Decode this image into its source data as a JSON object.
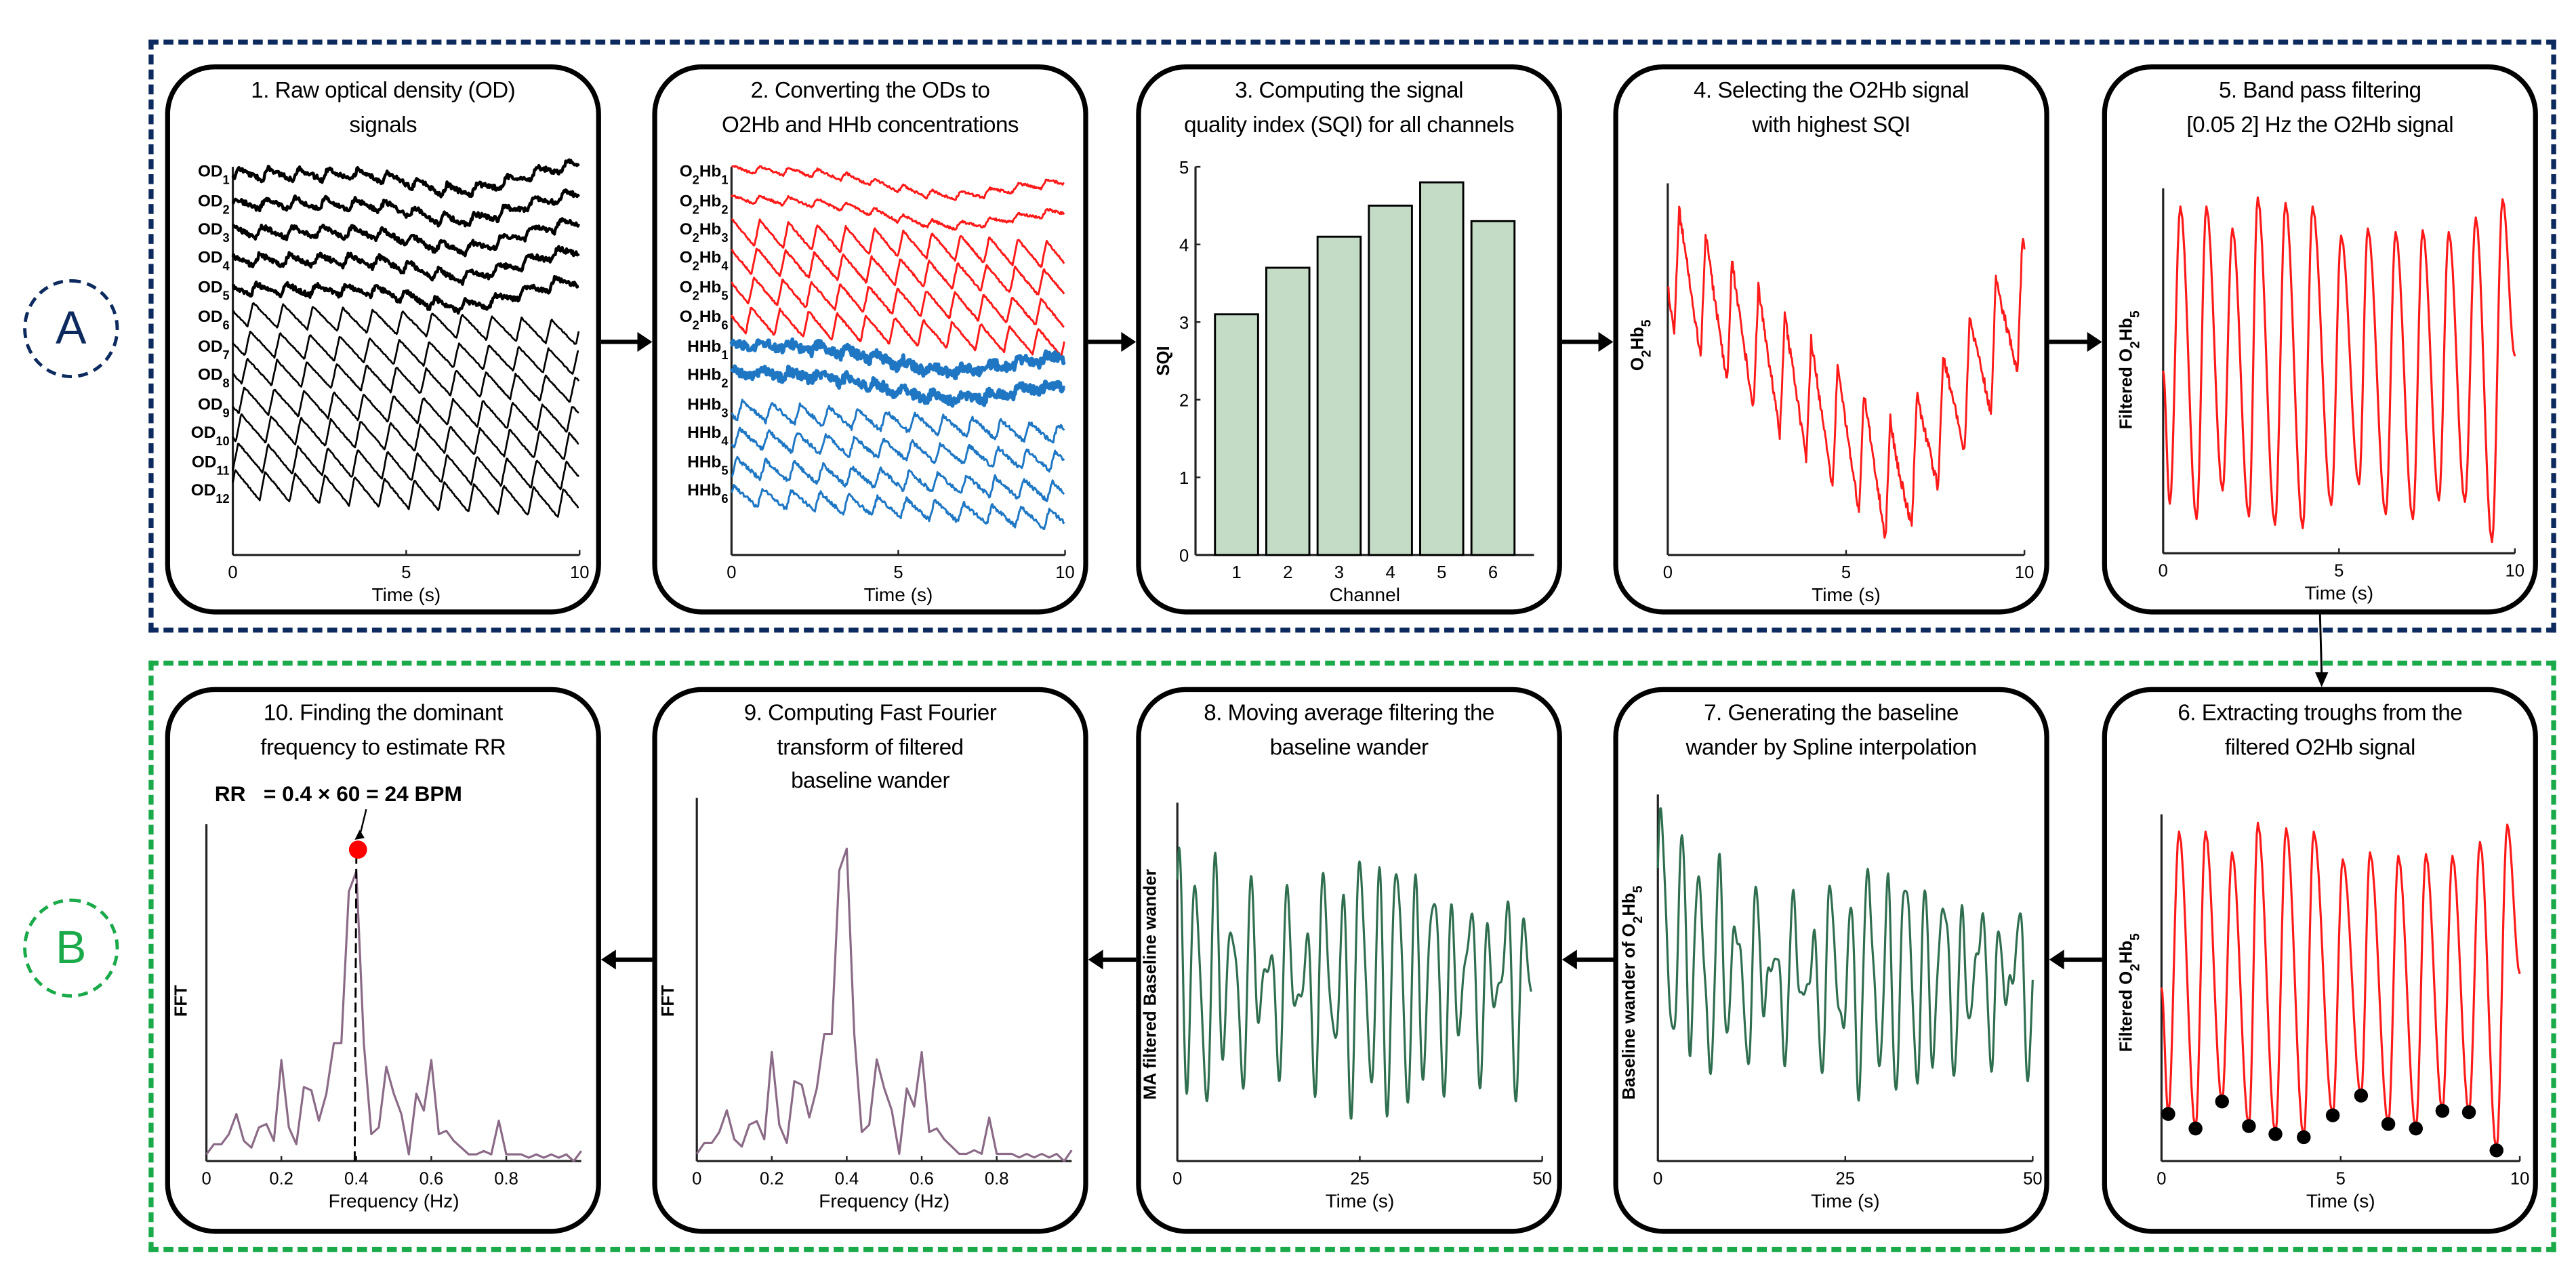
{
  "sections": {
    "a_label": "A",
    "b_label": "B"
  },
  "colors": {
    "section_a": "#0d2a5e",
    "section_b": "#1aaa4a",
    "red_signal": "#ff1a1a",
    "blue_signal": "#1f77c4",
    "black_signal": "#000000",
    "bar_fill": "#c4dcc6",
    "green_signal": "#2f6e4f",
    "fft_line": "#8a6a86",
    "trough_dot": "#000000",
    "peak_dot": "#ff0000"
  },
  "panels": {
    "p1": {
      "title1": "1. Raw optical density (OD)",
      "title2": "signals",
      "xlabel": "Time (s)",
      "xticks": [
        "0",
        "5",
        "10"
      ],
      "trace_labels": [
        {
          "base": "OD",
          "sub": "1"
        },
        {
          "base": "OD",
          "sub": "2"
        },
        {
          "base": "OD",
          "sub": "3"
        },
        {
          "base": "OD",
          "sub": "4"
        },
        {
          "base": "OD",
          "sub": "5"
        },
        {
          "base": "OD",
          "sub": "6"
        },
        {
          "base": "OD",
          "sub": "7"
        },
        {
          "base": "OD",
          "sub": "8"
        },
        {
          "base": "OD",
          "sub": "9"
        },
        {
          "base": "OD",
          "sub": "10"
        },
        {
          "base": "OD",
          "sub": "11"
        },
        {
          "base": "OD",
          "sub": "12"
        }
      ]
    },
    "p2": {
      "title1": "2. Converting the ODs to",
      "title2": "O2Hb and HHb concentrations",
      "xlabel": "Time (s)",
      "xticks": [
        "0",
        "5",
        "10"
      ],
      "trace_labels": [
        {
          "base": "O",
          "sub": "2",
          "base2": "Hb",
          "sub2": "1"
        },
        {
          "base": "O",
          "sub": "2",
          "base2": "Hb",
          "sub2": "2"
        },
        {
          "base": "O",
          "sub": "2",
          "base2": "Hb",
          "sub2": "3"
        },
        {
          "base": "O",
          "sub": "2",
          "base2": "Hb",
          "sub2": "4"
        },
        {
          "base": "O",
          "sub": "2",
          "base2": "Hb",
          "sub2": "5"
        },
        {
          "base": "O",
          "sub": "2",
          "base2": "Hb",
          "sub2": "6"
        },
        {
          "base": "HHb",
          "sub": "1"
        },
        {
          "base": "HHb",
          "sub": "2"
        },
        {
          "base": "HHb",
          "sub": "3"
        },
        {
          "base": "HHb",
          "sub": "4"
        },
        {
          "base": "HHb",
          "sub": "5"
        },
        {
          "base": "HHb",
          "sub": "6"
        }
      ]
    },
    "p3": {
      "title1": "3. Computing the signal",
      "title2": "quality index (SQI) for all channels",
      "xlabel": "Channel",
      "ylabel": "SQI",
      "yticks": [
        "0",
        "1",
        "2",
        "3",
        "4",
        "5"
      ],
      "xticks": [
        "1",
        "2",
        "3",
        "4",
        "5",
        "6"
      ]
    },
    "p4": {
      "title1": "4. Selecting the O2Hb signal",
      "title2": "with highest SQI",
      "xlabel": "Time (s)",
      "xticks": [
        "0",
        "5",
        "10"
      ],
      "ylabel": {
        "pre": "O",
        "sub1": "2",
        "mid": "Hb",
        "sub2": "5"
      }
    },
    "p5": {
      "title1": "5. Band pass filtering",
      "title2": "[0.05 2] Hz the O2Hb signal",
      "xlabel": "Time (s)",
      "xticks": [
        "0",
        "5",
        "10"
      ],
      "ylabel": {
        "pre": "Filtered O",
        "sub1": "2",
        "mid": "Hb",
        "sub2": "5"
      }
    },
    "p6": {
      "title1": "6. Extracting troughs from the",
      "title2": "filtered O2Hb signal",
      "xlabel": "Time (s)",
      "xticks": [
        "0",
        "5",
        "10"
      ],
      "ylabel": {
        "pre": "Filtered O",
        "sub1": "2",
        "mid": "Hb",
        "sub2": "5"
      }
    },
    "p7": {
      "title1": "7. Generating the baseline",
      "title2": "wander by Spline interpolation",
      "xlabel": "Time (s)",
      "xticks": [
        "0",
        "25",
        "50"
      ],
      "ylabel": {
        "pre": "Baseline wander of O",
        "sub1": "2",
        "mid": "Hb",
        "sub2": "5"
      }
    },
    "p8": {
      "title1": "8. Moving average filtering the",
      "title2": "baseline wander",
      "xlabel": "Time (s)",
      "xticks": [
        "0",
        "25",
        "50"
      ],
      "ylabel": {
        "pre": "MA  filtered Baseline wander",
        "sub1": "",
        "mid": "",
        "sub2": ""
      }
    },
    "p9": {
      "title1": "9. Computing Fast Fourier",
      "title2": "transform of filtered",
      "title3": "baseline wander",
      "xlabel": "Frequency (Hz)",
      "xticks": [
        "0",
        "0.2",
        "0.4",
        "0.6",
        "0.8"
      ],
      "ylabel": {
        "pre": "FFT",
        "sub1": "",
        "mid": "",
        "sub2": ""
      }
    },
    "p10": {
      "title1": "10. Finding the dominant",
      "title2": "frequency to estimate RR",
      "xlabel": "Frequency (Hz)",
      "xticks": [
        "0",
        "0.2",
        "0.4",
        "0.6",
        "0.8"
      ],
      "ylabel": {
        "pre": "FFT",
        "sub1": "",
        "mid": "",
        "sub2": ""
      },
      "rr_text": "RR   = 0.4 × 60 = 24 BPM"
    }
  },
  "chart_data": [
    {
      "panel": "3",
      "type": "bar",
      "title": "3. Computing the signal quality index (SQI) for all channels",
      "categories": [
        1,
        2,
        3,
        4,
        5,
        6
      ],
      "values": [
        3.1,
        3.7,
        4.1,
        4.5,
        4.8,
        4.3
      ],
      "xlabel": "Channel",
      "ylabel": "SQI",
      "ylim": [
        0,
        5
      ],
      "xlim": [
        0.2,
        6.8
      ]
    },
    {
      "panel": "9,10",
      "type": "line",
      "xlabel": "Frequency (Hz)",
      "ylabel": "FFT",
      "xlim": [
        0,
        1
      ],
      "ylim": [
        0,
        1
      ],
      "x": [
        0,
        0.02,
        0.04,
        0.06,
        0.08,
        0.1,
        0.12,
        0.14,
        0.16,
        0.18,
        0.2,
        0.22,
        0.24,
        0.26,
        0.28,
        0.3,
        0.32,
        0.34,
        0.36,
        0.38,
        0.4,
        0.42,
        0.44,
        0.46,
        0.48,
        0.5,
        0.52,
        0.54,
        0.56,
        0.58,
        0.6,
        0.62,
        0.64,
        0.66,
        0.68,
        0.7,
        0.72,
        0.74,
        0.76,
        0.78,
        0.8,
        0.82,
        0.84,
        0.86,
        0.88,
        0.9,
        0.92,
        0.94,
        0.96,
        0.98,
        1.0
      ],
      "values": [
        0.02,
        0.05,
        0.05,
        0.08,
        0.14,
        0.06,
        0.04,
        0.1,
        0.11,
        0.06,
        0.3,
        0.1,
        0.05,
        0.22,
        0.21,
        0.12,
        0.2,
        0.35,
        0.35,
        0.8,
        0.86,
        0.35,
        0.08,
        0.1,
        0.28,
        0.2,
        0.14,
        0.02,
        0.2,
        0.15,
        0.3,
        0.08,
        0.09,
        0.06,
        0.04,
        0.02,
        0.02,
        0.03,
        0.02,
        0.12,
        0.02,
        0.02,
        0.02,
        0.01,
        0.02,
        0.01,
        0.02,
        0.01,
        0.02,
        0.0,
        0.03
      ],
      "dominant_frequency": 0.4
    },
    {
      "panel": "6",
      "type": "scatter",
      "xlabel": "Time (s)",
      "xlim": [
        0,
        10
      ],
      "ylim": [
        0,
        1
      ],
      "troughs_t": [
        0.19,
        0.95,
        1.69,
        2.44,
        3.18,
        3.97,
        4.78,
        5.57,
        6.33,
        7.1,
        7.84,
        8.58,
        9.35
      ],
      "troughs_v": [
        0.136,
        0.094,
        0.172,
        0.101,
        0.078,
        0.069,
        0.132,
        0.189,
        0.107,
        0.094,
        0.145,
        0.141,
        0.031
      ],
      "peaks_t": [
        0.49,
        1.23,
        1.97,
        2.69,
        3.48,
        4.25,
        5.06,
        5.82,
        6.61,
        7.38,
        8.12,
        8.89,
        9.65
      ],
      "peaks_v": [
        0.95,
        0.95,
        0.89,
        0.975,
        0.96,
        0.95,
        0.87,
        0.89,
        0.88,
        0.885,
        0.88,
        0.92,
        0.97
      ]
    }
  ]
}
